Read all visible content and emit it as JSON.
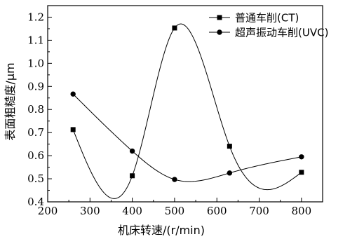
{
  "chart_data": {
    "type": "line",
    "xlabel": "机床转速/(r/min)",
    "ylabel": "表面粗糙度/μm",
    "xlim": [
      200,
      850
    ],
    "ylim": [
      0.4,
      1.25
    ],
    "xticks": [
      200,
      300,
      400,
      500,
      600,
      700,
      800
    ],
    "yticks": [
      0.4,
      0.5,
      0.6,
      0.7,
      0.8,
      0.9,
      1.0,
      1.1,
      1.2
    ],
    "xtick_labels": [
      "200",
      "300",
      "400",
      "500",
      "600",
      "700",
      "800"
    ],
    "ytick_labels": [
      "0.4",
      "0.5",
      "0.6",
      "0.7",
      "0.8",
      "0.9",
      "1.0",
      "1.1",
      "1.2"
    ],
    "legend_position": "top-right",
    "grid": false,
    "series": [
      {
        "name": "普通车削(CT)",
        "marker": "square",
        "color": "#000000",
        "x": [
          260,
          400,
          500,
          630,
          800
        ],
        "y": [
          0.713,
          0.513,
          1.153,
          0.641,
          0.528
        ]
      },
      {
        "name": "超声振动车削(UVC)",
        "marker": "circle",
        "color": "#000000",
        "x": [
          260,
          400,
          500,
          630,
          800
        ],
        "y": [
          0.867,
          0.62,
          0.497,
          0.525,
          0.595
        ]
      }
    ]
  }
}
